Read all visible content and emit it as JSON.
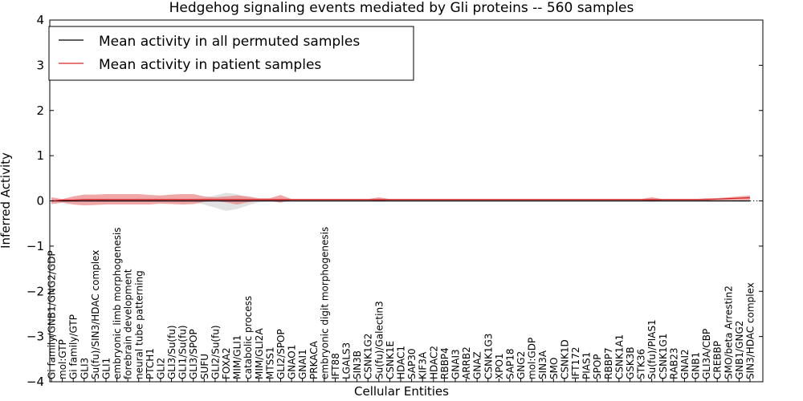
{
  "chart_data": {
    "type": "line",
    "title": "Hedgehog signaling events mediated by Gli proteins -- 560 samples",
    "xlabel": "Cellular Entities",
    "ylabel": "Inferred Activity",
    "ylim": [
      -4,
      4
    ],
    "yticks": [
      4,
      3,
      2,
      1,
      0,
      -1,
      -2,
      -3,
      -4
    ],
    "ytick_labels": [
      "4",
      "3",
      "2",
      "1",
      "0",
      "−1",
      "−2",
      "−3",
      "−4"
    ],
    "categories": [
      "Gi family/GNB1/GNG2/GDP",
      "mol:GTP",
      "Gi family/GTP",
      "GLI3",
      "Su(fu)/SIN3/HDAC complex",
      "GLI1",
      "embryonic limb morphogenesis",
      "forebrain development",
      "neural tube patterning",
      "PTCH1",
      "GLI2",
      "GLI3/Su(fu)",
      "GLI1/Su(fu)",
      "GLI3/SPOP",
      "SUFU",
      "GLI2/Su(fu)",
      "FOXA2",
      "MIM/GLI1",
      "catabolic process",
      "MIM/GLI2A",
      "MTSS1",
      "GLI2/SPOP",
      "GNAO1",
      "GNAI1",
      "PRKACA",
      "embryonic digit morphogenesis",
      "IFT88",
      "LGALS3",
      "SIN3B",
      "CSNK1G2",
      "Su(fu)/Galectin3",
      "CSNK1E",
      "HDAC1",
      "SAP30",
      "KIF3A",
      "HDAC2",
      "RBBP4",
      "GNAI3",
      "ARRB2",
      "GNAZ",
      "CSNK1G3",
      "XPO1",
      "SAP18",
      "GNG2",
      "mol:GDP",
      "SIN3A",
      "SMO",
      "CSNK1D",
      "IFT172",
      "PIAS1",
      "SPOP",
      "RBBP7",
      "CSNK1A1",
      "GSK3B",
      "STK36",
      "Su(fu)/PIAS1",
      "CSNK1G1",
      "RAB23",
      "GNAI2",
      "GNB1",
      "GLI3A/CBP",
      "CREBBP",
      "SMO/beta Arrestin2",
      "GNB1/GNG2",
      "SIN3/HDAC complex"
    ],
    "series": [
      {
        "name": "Mean activity in all permuted samples",
        "color": "#000000",
        "values": [
          0.0,
          0.0,
          0.0,
          0.0,
          0.0,
          0.0,
          0.0,
          0.0,
          0.0,
          0.0,
          0.0,
          0.0,
          0.0,
          0.0,
          0.0,
          0.0,
          0.0,
          0.0,
          0.0,
          0.0,
          0.0,
          0.0,
          0.0,
          0.0,
          0.0,
          0.0,
          0.0,
          0.0,
          0.0,
          0.0,
          0.0,
          0.0,
          0.0,
          0.0,
          0.0,
          0.0,
          0.0,
          0.0,
          0.0,
          0.0,
          0.0,
          0.0,
          0.0,
          0.0,
          0.0,
          0.0,
          0.0,
          0.0,
          0.0,
          0.0,
          0.0,
          0.0,
          0.0,
          0.0,
          0.0,
          0.0,
          0.0,
          0.0,
          0.0,
          0.0,
          0.0,
          0.0,
          0.0,
          0.0,
          0.0
        ],
        "band_lower": [
          -0.02,
          -0.02,
          -0.02,
          -0.02,
          -0.02,
          -0.02,
          -0.02,
          -0.02,
          -0.02,
          -0.02,
          -0.02,
          -0.03,
          -0.03,
          -0.03,
          -0.08,
          -0.15,
          -0.22,
          -0.18,
          -0.1,
          -0.03,
          -0.02,
          -0.02,
          -0.02,
          -0.02,
          -0.02,
          -0.02,
          -0.02,
          -0.02,
          -0.02,
          -0.02,
          -0.02,
          -0.02,
          -0.02,
          -0.02,
          -0.02,
          -0.02,
          -0.02,
          -0.02,
          -0.02,
          -0.02,
          -0.02,
          -0.02,
          -0.02,
          -0.02,
          -0.02,
          -0.02,
          -0.02,
          -0.02,
          -0.02,
          -0.02,
          -0.02,
          -0.02,
          -0.02,
          -0.02,
          -0.02,
          -0.02,
          -0.02,
          -0.02,
          -0.02,
          -0.02,
          -0.02,
          -0.02,
          -0.02,
          -0.02,
          -0.02
        ],
        "band_upper": [
          0.02,
          0.02,
          0.02,
          0.02,
          0.02,
          0.02,
          0.02,
          0.02,
          0.02,
          0.02,
          0.02,
          0.03,
          0.03,
          0.03,
          0.06,
          0.12,
          0.18,
          0.15,
          0.08,
          0.03,
          0.02,
          0.02,
          0.02,
          0.02,
          0.02,
          0.02,
          0.02,
          0.02,
          0.02,
          0.02,
          0.02,
          0.02,
          0.02,
          0.02,
          0.02,
          0.02,
          0.02,
          0.02,
          0.02,
          0.02,
          0.02,
          0.02,
          0.02,
          0.02,
          0.02,
          0.02,
          0.02,
          0.02,
          0.02,
          0.02,
          0.02,
          0.02,
          0.02,
          0.02,
          0.02,
          0.02,
          0.02,
          0.02,
          0.02,
          0.02,
          0.02,
          0.02,
          0.02,
          0.02,
          0.02
        ]
      },
      {
        "name": "Mean activity in patient samples",
        "color": "#d62728",
        "values": [
          0.0,
          0.02,
          0.02,
          0.03,
          0.03,
          0.03,
          0.03,
          0.03,
          0.03,
          0.03,
          0.03,
          0.03,
          0.03,
          0.03,
          0.03,
          0.03,
          0.03,
          0.03,
          0.03,
          0.03,
          0.03,
          0.03,
          0.03,
          0.03,
          0.03,
          0.03,
          0.03,
          0.03,
          0.03,
          0.03,
          0.03,
          0.03,
          0.03,
          0.03,
          0.03,
          0.03,
          0.03,
          0.03,
          0.03,
          0.03,
          0.03,
          0.03,
          0.03,
          0.03,
          0.03,
          0.03,
          0.03,
          0.03,
          0.03,
          0.03,
          0.03,
          0.03,
          0.03,
          0.03,
          0.03,
          0.03,
          0.03,
          0.03,
          0.03,
          0.03,
          0.03,
          0.04,
          0.05,
          0.06,
          0.07
        ],
        "band_lower": [
          -0.07,
          -0.04,
          -0.08,
          -0.1,
          -0.09,
          -0.08,
          -0.08,
          -0.08,
          -0.08,
          -0.08,
          -0.06,
          -0.07,
          -0.08,
          -0.07,
          -0.02,
          0.0,
          -0.03,
          -0.08,
          -0.03,
          0.0,
          0.0,
          -0.04,
          0.02,
          0.02,
          0.02,
          0.02,
          0.02,
          0.02,
          0.02,
          0.02,
          -0.01,
          0.02,
          0.02,
          0.02,
          0.02,
          0.02,
          0.02,
          0.02,
          0.02,
          0.02,
          0.02,
          0.02,
          0.02,
          0.02,
          0.02,
          0.02,
          0.02,
          0.02,
          0.02,
          0.02,
          0.02,
          0.02,
          0.02,
          0.02,
          0.02,
          -0.01,
          0.02,
          0.02,
          0.02,
          0.02,
          0.02,
          0.02,
          0.02,
          0.02,
          0.02
        ],
        "band_upper": [
          0.08,
          0.04,
          0.1,
          0.14,
          0.14,
          0.15,
          0.15,
          0.15,
          0.15,
          0.13,
          0.12,
          0.14,
          0.15,
          0.15,
          0.1,
          0.08,
          0.1,
          0.12,
          0.1,
          0.06,
          0.06,
          0.13,
          0.04,
          0.04,
          0.04,
          0.04,
          0.04,
          0.04,
          0.04,
          0.04,
          0.08,
          0.04,
          0.04,
          0.04,
          0.04,
          0.04,
          0.04,
          0.04,
          0.04,
          0.04,
          0.04,
          0.04,
          0.04,
          0.04,
          0.04,
          0.04,
          0.04,
          0.04,
          0.04,
          0.04,
          0.04,
          0.04,
          0.04,
          0.04,
          0.04,
          0.08,
          0.04,
          0.04,
          0.04,
          0.04,
          0.06,
          0.06,
          0.08,
          0.1,
          0.12
        ]
      }
    ],
    "reference_line": {
      "y": 0,
      "style": "dotted"
    },
    "legend_position": "top-left",
    "grid": false
  }
}
